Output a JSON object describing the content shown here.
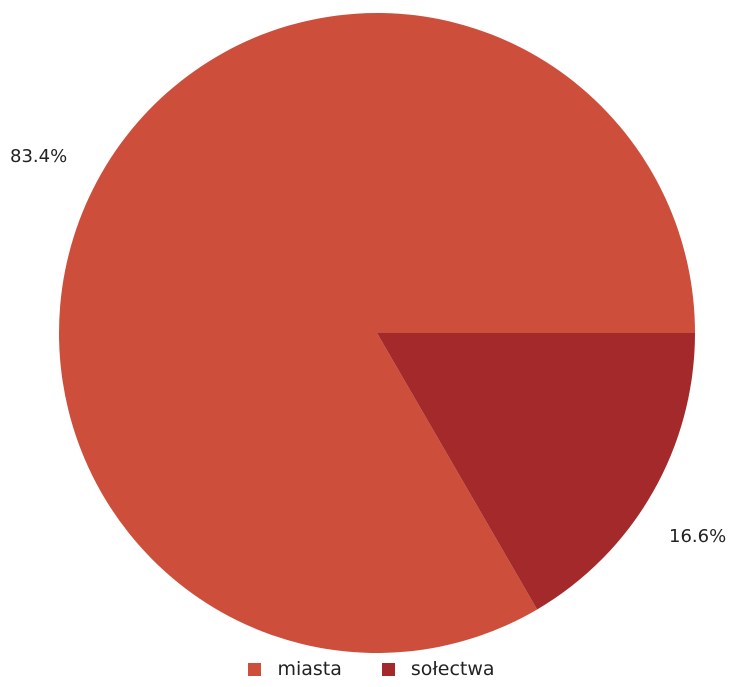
{
  "chart_data": {
    "type": "pie",
    "title": "",
    "start_angle_deg": 0,
    "direction": "clockwise",
    "slices": [
      {
        "name": "sołectwa",
        "value": 16.6,
        "label": "16.6%",
        "color": "#a3292a"
      },
      {
        "name": "miasta",
        "value": 83.4,
        "label": "83.4%",
        "color": "#cd4f3b"
      }
    ],
    "legend": {
      "position": "bottom",
      "items": [
        {
          "name": "miasta",
          "color": "#cd4f3b"
        },
        {
          "name": "sołectwa",
          "color": "#a3292a"
        }
      ]
    }
  }
}
